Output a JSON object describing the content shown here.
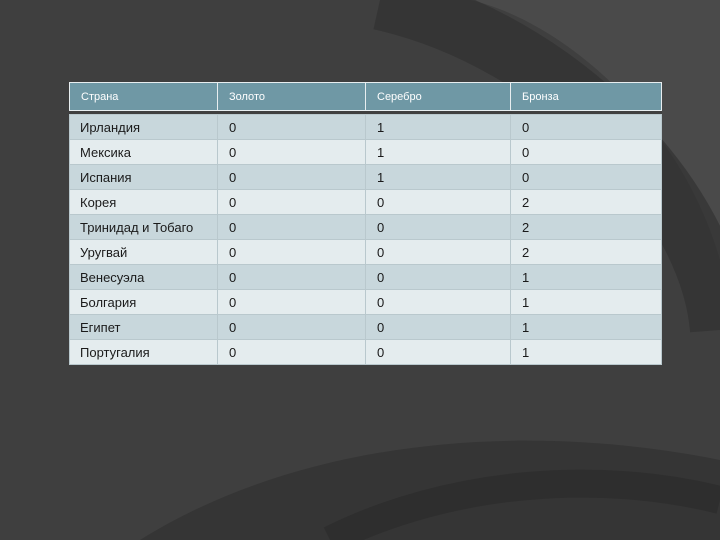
{
  "colors": {
    "background": "#3f3f3f",
    "header_bg": "#6f98a5",
    "row_odd_bg": "#c8d7dc",
    "row_even_bg": "#e4ecee"
  },
  "table": {
    "headers": [
      "Страна",
      "Золото",
      "Серебро",
      "Бронза"
    ],
    "rows": [
      [
        "Ирландия",
        "0",
        "1",
        "0"
      ],
      [
        "Мексика",
        "0",
        "1",
        "0"
      ],
      [
        "Испания",
        "0",
        "1",
        "0"
      ],
      [
        "Корея",
        "0",
        "0",
        "2"
      ],
      [
        "Тринидад и Тобаго",
        "0",
        "0",
        "2"
      ],
      [
        "Уругвай",
        "0",
        "0",
        "2"
      ],
      [
        "Венесуэла",
        "0",
        "0",
        "1"
      ],
      [
        "Болгария",
        "0",
        "0",
        "1"
      ],
      [
        "Египет",
        "0",
        "0",
        "1"
      ],
      [
        "Португалия",
        "0",
        "0",
        "1"
      ]
    ]
  }
}
